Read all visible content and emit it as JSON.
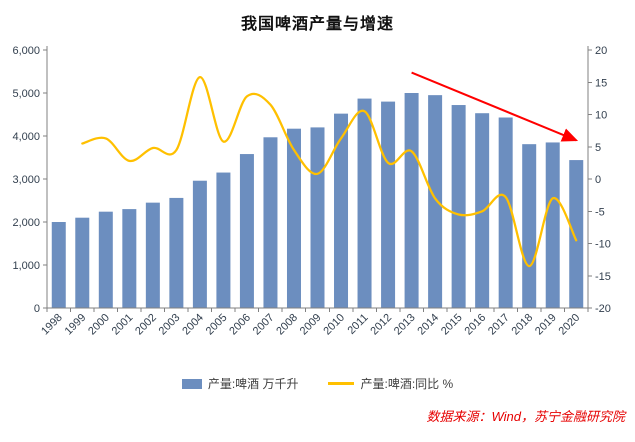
{
  "title": "我国啤酒产量与增速",
  "source": "数据来源：Wind，苏宁金融研究院",
  "source_color": "#e60000",
  "legend": [
    {
      "label": "产量:啤酒 万千升",
      "type": "bar",
      "color": "#6C8EBF"
    },
    {
      "label": "产量:啤酒:同比 %",
      "type": "line",
      "color": "#FFC000"
    }
  ],
  "chart_data": {
    "type": "bar",
    "combo": "bar+line",
    "title": "我国啤酒产量与增速",
    "categories": [
      "1998",
      "1999",
      "2000",
      "2001",
      "2002",
      "2003",
      "2004",
      "2005",
      "2006",
      "2007",
      "2008",
      "2009",
      "2010",
      "2011",
      "2012",
      "2013",
      "2014",
      "2015",
      "2016",
      "2017",
      "2018",
      "2019",
      "2020"
    ],
    "series": [
      {
        "name": "产量:啤酒 万千升",
        "type": "bar",
        "axis": "left",
        "color": "#6C8EBF",
        "values": [
          2000,
          2100,
          2240,
          2300,
          2450,
          2560,
          2960,
          3150,
          3580,
          3970,
          4170,
          4200,
          4520,
          4870,
          4800,
          5000,
          4950,
          4720,
          4530,
          4430,
          3810,
          3850,
          3440
        ]
      },
      {
        "name": "产量:啤酒:同比 %",
        "type": "line",
        "axis": "right",
        "color": "#FFC000",
        "values": [
          null,
          5.5,
          6.3,
          2.8,
          4.8,
          4.5,
          15.8,
          5.8,
          12.8,
          11.5,
          4.5,
          0.8,
          6.3,
          10.5,
          2.5,
          4.3,
          -3.0,
          -5.5,
          -5.0,
          -2.8,
          -13.5,
          -3.0,
          -9.5
        ]
      }
    ],
    "left_axis": {
      "min": 0,
      "max": 6000,
      "step": 1000,
      "tick_labels": [
        "0",
        "1,000",
        "2,000",
        "3,000",
        "4,000",
        "5,000",
        "6,000"
      ]
    },
    "right_axis": {
      "min": -20,
      "max": 20,
      "step": 5,
      "tick_labels": [
        "-20",
        "-15",
        "-10",
        "-5",
        "0",
        "5",
        "10",
        "15",
        "20"
      ]
    },
    "grid": false,
    "legend_position": "bottom",
    "annotation": {
      "type": "arrow",
      "color": "#FF0000",
      "from": {
        "year": "2013",
        "value": 16.5
      },
      "to": {
        "year": "2020",
        "value": 6.0
      }
    }
  }
}
